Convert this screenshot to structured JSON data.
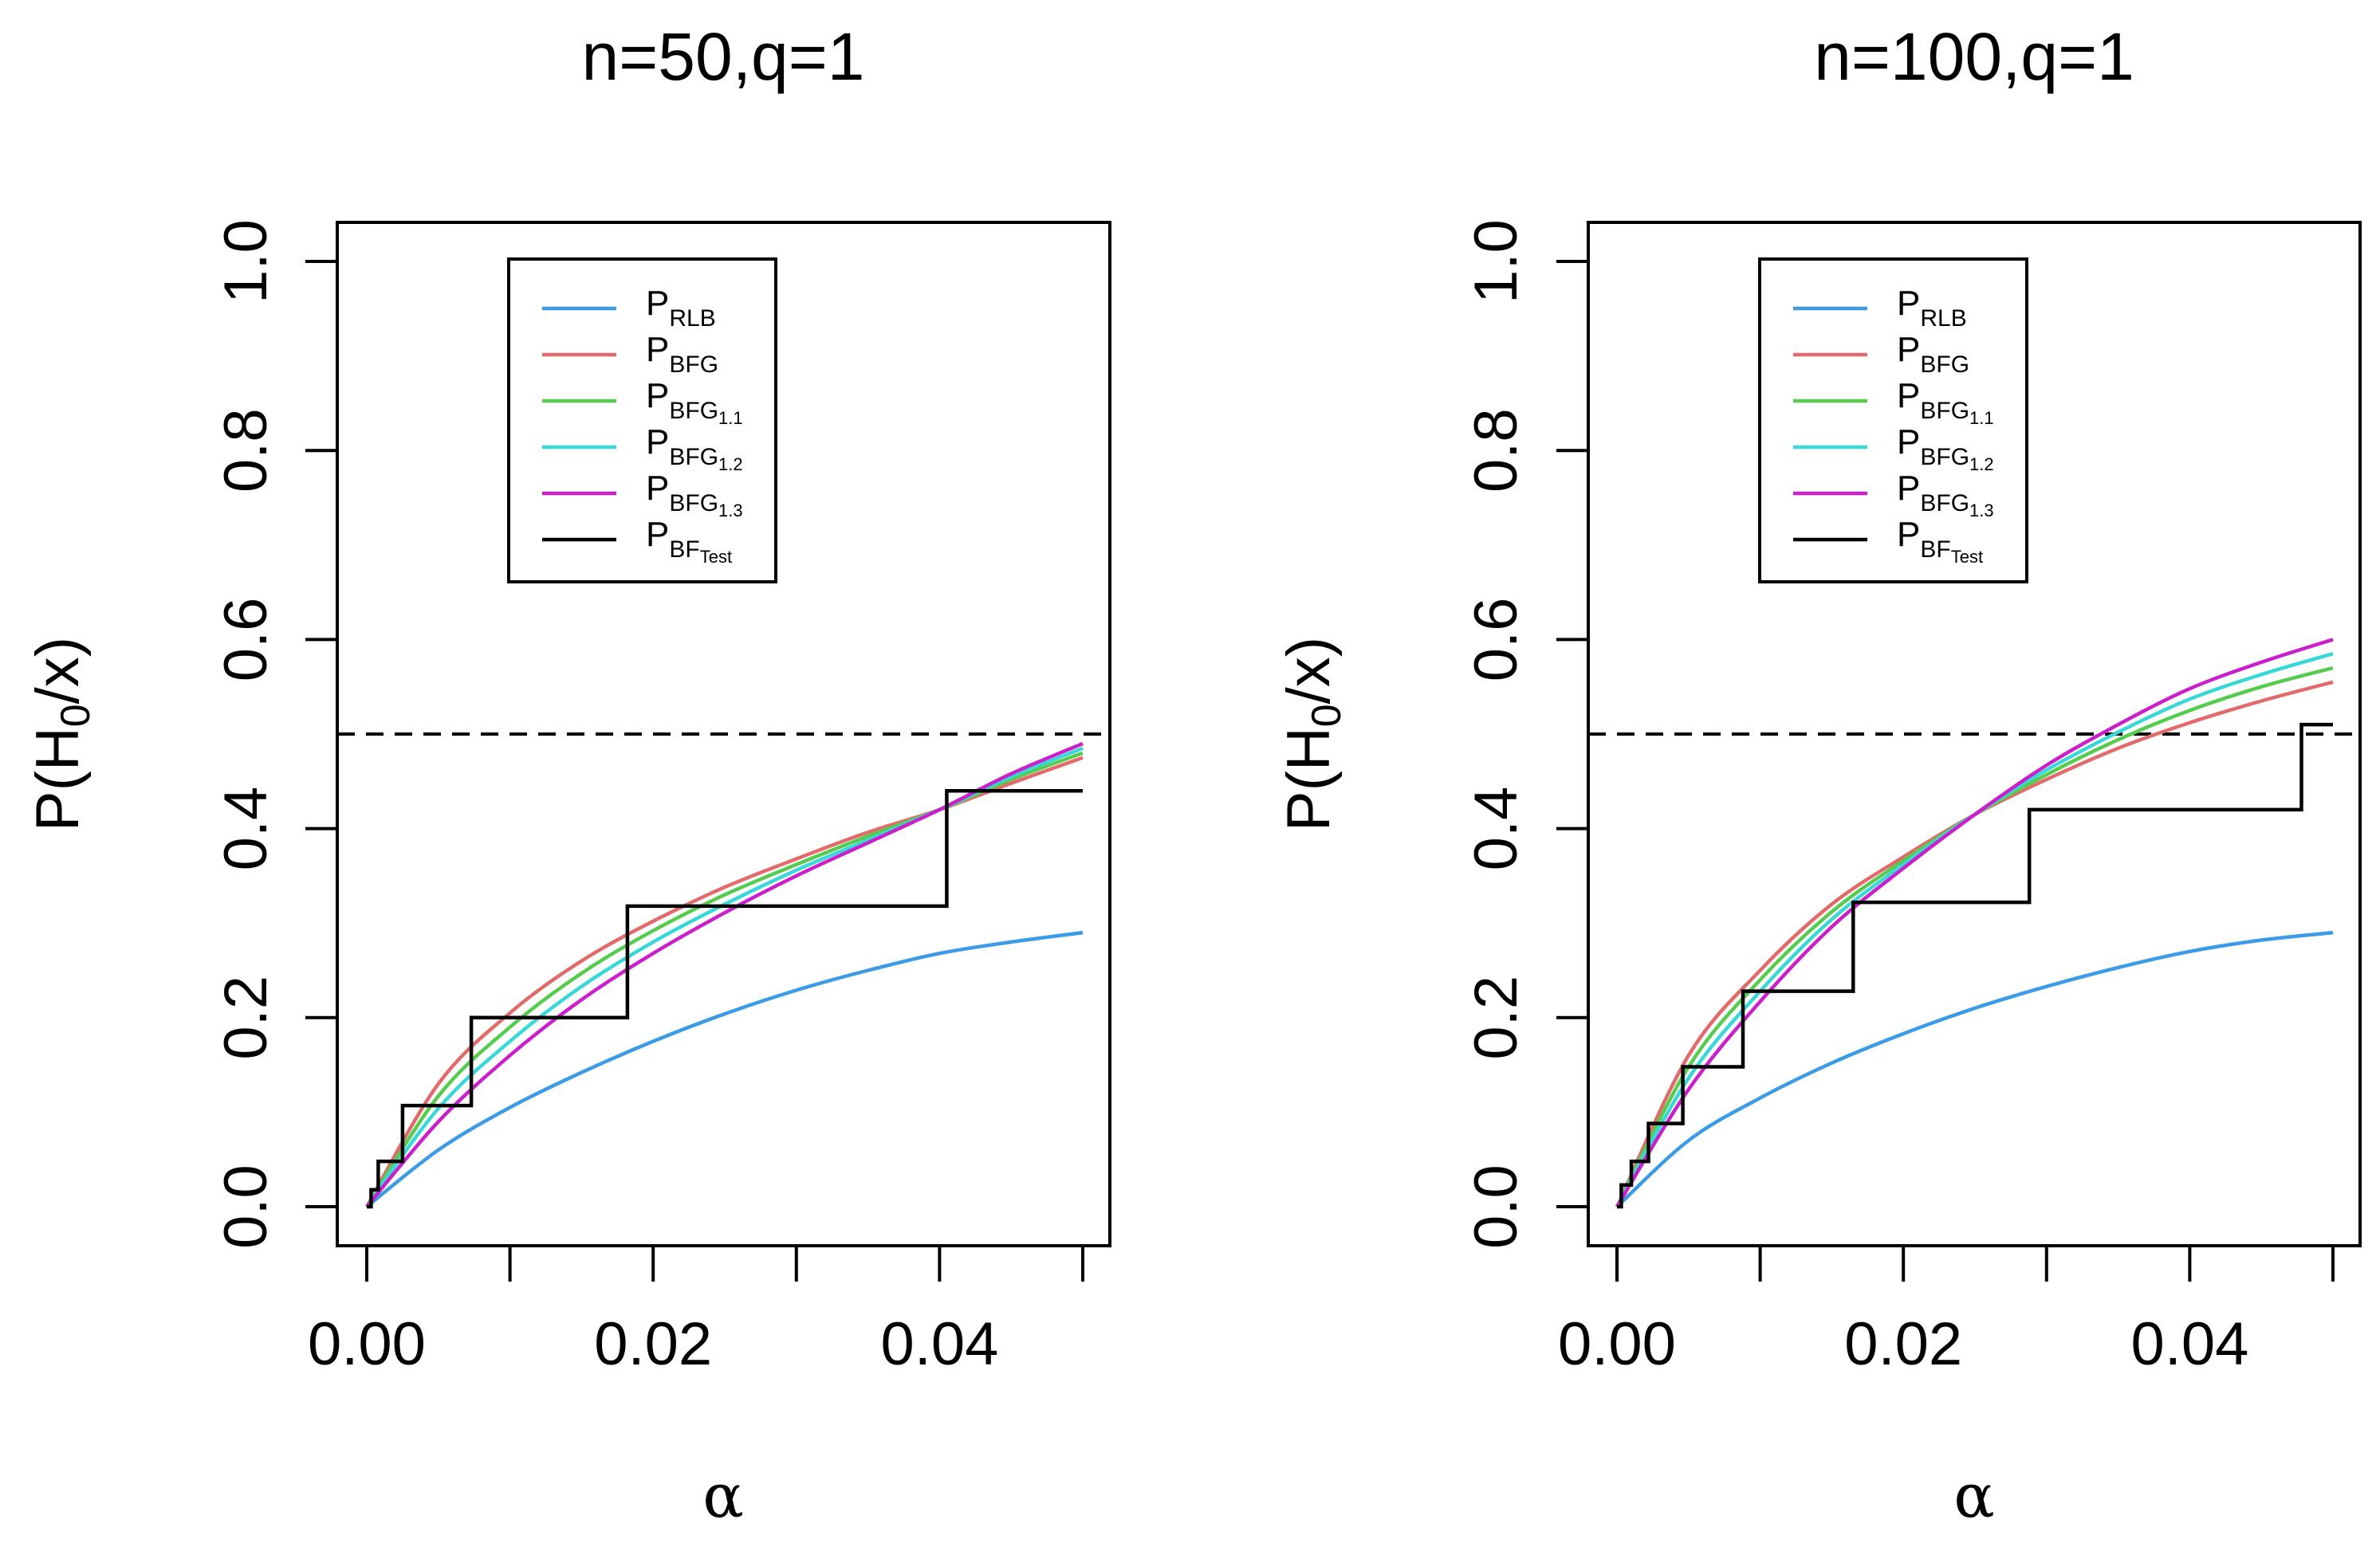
{
  "chart_data": [
    {
      "type": "line",
      "title": "n=50,q=1",
      "xlabel": "α",
      "ylabel": "P(H0/x)",
      "xlim": [
        0,
        0.05
      ],
      "ylim": [
        0,
        1
      ],
      "x_ticks": [
        "0.00",
        "0.02",
        "0.04"
      ],
      "y_ticks": [
        "0.0",
        "0.2",
        "0.4",
        "0.6",
        "0.8",
        "1.0"
      ],
      "reference_line": {
        "y": 0.5,
        "style": "dashed"
      },
      "legend_position": "top-center",
      "series": [
        {
          "name": "P_RLB",
          "color": "#3b9be6",
          "x": [
            0.0,
            0.005,
            0.01,
            0.015,
            0.02,
            0.025,
            0.03,
            0.035,
            0.04,
            0.045,
            0.05
          ],
          "values": [
            0.0,
            0.06,
            0.105,
            0.142,
            0.175,
            0.204,
            0.229,
            0.25,
            0.268,
            0.28,
            0.29
          ]
        },
        {
          "name": "P_BFG",
          "color": "#e26a6a",
          "x": [
            0.0,
            0.005,
            0.01,
            0.015,
            0.02,
            0.025,
            0.03,
            0.035,
            0.04,
            0.045,
            0.05
          ],
          "values": [
            0.0,
            0.13,
            0.205,
            0.26,
            0.302,
            0.338,
            0.368,
            0.396,
            0.42,
            0.448,
            0.475
          ]
        },
        {
          "name": "P_BFG1.1",
          "color": "#56cc4f",
          "x": [
            0.0,
            0.005,
            0.01,
            0.015,
            0.02,
            0.025,
            0.03,
            0.035,
            0.04,
            0.045,
            0.05
          ],
          "values": [
            0.0,
            0.117,
            0.19,
            0.247,
            0.292,
            0.33,
            0.362,
            0.392,
            0.42,
            0.452,
            0.48
          ]
        },
        {
          "name": "P_BFG1.2",
          "color": "#38d8d8",
          "x": [
            0.0,
            0.005,
            0.01,
            0.015,
            0.02,
            0.025,
            0.03,
            0.035,
            0.04,
            0.045,
            0.05
          ],
          "values": [
            0.0,
            0.104,
            0.175,
            0.233,
            0.28,
            0.32,
            0.356,
            0.388,
            0.42,
            0.455,
            0.485
          ]
        },
        {
          "name": "P_BFG1.3",
          "color": "#cc1fcc",
          "x": [
            0.0,
            0.005,
            0.01,
            0.015,
            0.02,
            0.025,
            0.03,
            0.035,
            0.04,
            0.045,
            0.05
          ],
          "values": [
            0.0,
            0.09,
            0.16,
            0.219,
            0.268,
            0.311,
            0.35,
            0.385,
            0.42,
            0.458,
            0.49
          ]
        },
        {
          "name": "P_BFTest",
          "color": "#000000",
          "step": true,
          "x": [
            0.0,
            0.0003,
            0.0003,
            0.0008,
            0.0008,
            0.0025,
            0.0025,
            0.0073,
            0.0073,
            0.0182,
            0.0182,
            0.0405,
            0.0405,
            0.05
          ],
          "values": [
            0.0,
            0.0,
            0.018,
            0.018,
            0.048,
            0.048,
            0.107,
            0.107,
            0.2,
            0.2,
            0.318,
            0.318,
            0.44,
            0.44
          ]
        }
      ]
    },
    {
      "type": "line",
      "title": "n=100,q=1",
      "xlabel": "α",
      "ylabel": "P(H0/x)",
      "xlim": [
        0,
        0.05
      ],
      "ylim": [
        0,
        1
      ],
      "x_ticks": [
        "0.00",
        "0.02",
        "0.04"
      ],
      "y_ticks": [
        "0.0",
        "0.2",
        "0.4",
        "0.6",
        "0.8",
        "1.0"
      ],
      "reference_line": {
        "y": 0.5,
        "style": "dashed"
      },
      "legend_position": "top-center",
      "series": [
        {
          "name": "P_RLB",
          "color": "#3b9be6",
          "x": [
            0.0,
            0.005,
            0.01,
            0.015,
            0.02,
            0.025,
            0.03,
            0.035,
            0.04,
            0.045,
            0.05
          ],
          "values": [
            0.0,
            0.07,
            0.115,
            0.152,
            0.183,
            0.21,
            0.233,
            0.253,
            0.27,
            0.282,
            0.29
          ]
        },
        {
          "name": "P_BFG",
          "color": "#e26a6a",
          "x": [
            0.0,
            0.005,
            0.01,
            0.015,
            0.02,
            0.025,
            0.03,
            0.035,
            0.04,
            0.045,
            0.05
          ],
          "values": [
            0.0,
            0.16,
            0.25,
            0.32,
            0.37,
            0.415,
            0.452,
            0.485,
            0.512,
            0.535,
            0.555
          ]
        },
        {
          "name": "P_BFG1.1",
          "color": "#56cc4f",
          "x": [
            0.0,
            0.005,
            0.01,
            0.015,
            0.02,
            0.025,
            0.03,
            0.035,
            0.04,
            0.045,
            0.05
          ],
          "values": [
            0.0,
            0.148,
            0.24,
            0.312,
            0.366,
            0.415,
            0.457,
            0.494,
            0.525,
            0.55,
            0.57
          ]
        },
        {
          "name": "P_BFG1.2",
          "color": "#38d8d8",
          "x": [
            0.0,
            0.005,
            0.01,
            0.015,
            0.02,
            0.025,
            0.03,
            0.035,
            0.04,
            0.045,
            0.05
          ],
          "values": [
            0.0,
            0.136,
            0.228,
            0.304,
            0.362,
            0.415,
            0.462,
            0.502,
            0.537,
            0.563,
            0.585
          ]
        },
        {
          "name": "P_BFG1.3",
          "color": "#cc1fcc",
          "x": [
            0.0,
            0.005,
            0.01,
            0.015,
            0.02,
            0.025,
            0.03,
            0.035,
            0.04,
            0.045,
            0.05
          ],
          "values": [
            0.0,
            0.124,
            0.217,
            0.296,
            0.358,
            0.415,
            0.467,
            0.51,
            0.548,
            0.576,
            0.6
          ]
        },
        {
          "name": "P_BFTest",
          "color": "#000000",
          "step": true,
          "x": [
            0.0,
            0.0003,
            0.0003,
            0.001,
            0.001,
            0.0022,
            0.0022,
            0.0046,
            0.0046,
            0.0088,
            0.0088,
            0.0165,
            0.0165,
            0.0288,
            0.0288,
            0.0478,
            0.0478,
            0.05
          ],
          "values": [
            0.0,
            0.0,
            0.023,
            0.023,
            0.048,
            0.048,
            0.088,
            0.088,
            0.148,
            0.148,
            0.228,
            0.228,
            0.322,
            0.322,
            0.42,
            0.42,
            0.51,
            0.51
          ]
        }
      ]
    }
  ]
}
